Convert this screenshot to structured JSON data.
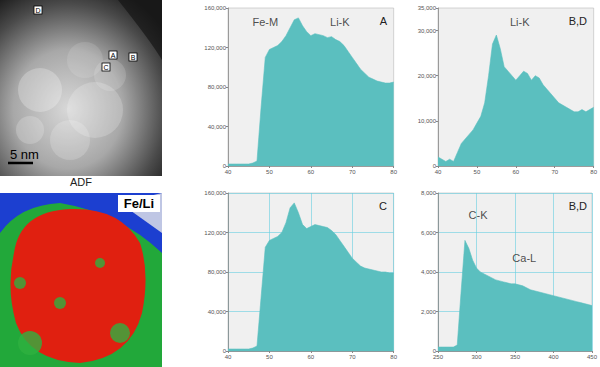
{
  "images": [
    {
      "caption": "ADF",
      "scale_bar": "5 nm",
      "markers": [
        "D",
        "A",
        "B",
        "C"
      ]
    },
    {
      "label": "Fe/Li"
    }
  ],
  "chart_data": [
    {
      "type": "area",
      "title": "A",
      "color": "#5bbfbf",
      "grid": false,
      "x": [
        40,
        41,
        42,
        43,
        44,
        45,
        46,
        47,
        48,
        49,
        50,
        51,
        52,
        53,
        54,
        55,
        56,
        57,
        58,
        59,
        60,
        61,
        62,
        63,
        64,
        65,
        66,
        67,
        68,
        69,
        70,
        71,
        72,
        73,
        74,
        75,
        76,
        77,
        78,
        79,
        80
      ],
      "values": [
        2000,
        2000,
        2000,
        2000,
        2000,
        2000,
        3000,
        5000,
        60000,
        110000,
        118000,
        120000,
        122000,
        126000,
        132000,
        140000,
        148000,
        150000,
        142000,
        136000,
        132000,
        134000,
        133000,
        132000,
        130000,
        131000,
        128000,
        126000,
        122000,
        116000,
        110000,
        104000,
        98000,
        94000,
        90000,
        88000,
        86000,
        85000,
        84000,
        84000,
        85000
      ],
      "xlim": [
        40,
        80
      ],
      "xticks": [
        40,
        50,
        60,
        70,
        80
      ],
      "ylim": [
        0,
        160000
      ],
      "yticks": [
        0,
        40000,
        80000,
        120000,
        160000
      ],
      "annotations": [
        {
          "text": "Fe-M",
          "x": 49,
          "y": 146000
        },
        {
          "text": "Li-K",
          "x": 67,
          "y": 146000
        }
      ]
    },
    {
      "type": "area",
      "title": "B,D",
      "color": "#5bbfbf",
      "grid": false,
      "x": [
        40,
        41,
        42,
        43,
        44,
        45,
        46,
        47,
        48,
        49,
        50,
        51,
        52,
        53,
        54,
        55,
        56,
        57,
        58,
        59,
        60,
        61,
        62,
        63,
        64,
        65,
        66,
        67,
        68,
        69,
        70,
        71,
        72,
        73,
        74,
        75,
        76,
        77,
        78,
        79,
        80
      ],
      "values": [
        2000,
        1500,
        1000,
        1500,
        1000,
        3000,
        5000,
        6000,
        7000,
        8000,
        9500,
        11000,
        14000,
        20000,
        27000,
        29000,
        26000,
        22000,
        21000,
        20000,
        19000,
        20000,
        21000,
        20500,
        19000,
        20000,
        19500,
        18000,
        17000,
        16000,
        15000,
        14000,
        13500,
        13000,
        12500,
        12000,
        12000,
        12500,
        12000,
        12500,
        13000
      ],
      "xlim": [
        40,
        80
      ],
      "xticks": [
        40,
        50,
        60,
        70,
        80
      ],
      "ylim": [
        0,
        35000
      ],
      "yticks": [
        0,
        10000,
        20000,
        30000
      ],
      "annotations": [
        {
          "text": "Li-K",
          "x": 61,
          "y": 32000
        }
      ]
    },
    {
      "type": "area",
      "title": "C",
      "color": "#5bbfbf",
      "grid": true,
      "x": [
        40,
        41,
        42,
        43,
        44,
        45,
        46,
        47,
        48,
        49,
        50,
        51,
        52,
        53,
        54,
        55,
        56,
        57,
        58,
        59,
        60,
        61,
        62,
        63,
        64,
        65,
        66,
        67,
        68,
        69,
        70,
        71,
        72,
        73,
        74,
        75,
        76,
        77,
        78,
        79,
        80
      ],
      "values": [
        2000,
        2000,
        2000,
        2000,
        2000,
        2000,
        3000,
        5000,
        55000,
        105000,
        112000,
        114000,
        116000,
        120000,
        130000,
        145000,
        150000,
        140000,
        128000,
        124000,
        126000,
        128000,
        127000,
        126000,
        125000,
        122000,
        118000,
        112000,
        106000,
        100000,
        94000,
        90000,
        86000,
        84000,
        83000,
        82000,
        81000,
        80000,
        80000,
        79000,
        79000
      ],
      "xlim": [
        40,
        80
      ],
      "xticks": [
        40,
        50,
        60,
        70,
        80
      ],
      "ylim": [
        0,
        160000
      ],
      "yticks": [
        0,
        40000,
        80000,
        120000,
        160000
      ],
      "annotations": []
    },
    {
      "type": "area",
      "title": "B,D",
      "color": "#5bbfbf",
      "grid": true,
      "x": [
        250,
        255,
        260,
        265,
        270,
        275,
        280,
        285,
        290,
        295,
        300,
        305,
        310,
        315,
        320,
        325,
        330,
        335,
        340,
        345,
        350,
        355,
        360,
        365,
        370,
        375,
        380,
        385,
        390,
        395,
        400,
        405,
        410,
        415,
        420,
        425,
        430,
        435,
        440,
        445,
        450
      ],
      "values": [
        200,
        200,
        200,
        200,
        200,
        300,
        3000,
        5600,
        5200,
        4600,
        4200,
        4000,
        3900,
        3800,
        3700,
        3600,
        3550,
        3500,
        3450,
        3400,
        3400,
        3350,
        3300,
        3200,
        3100,
        3050,
        3000,
        2950,
        2900,
        2850,
        2800,
        2750,
        2700,
        2650,
        2600,
        2550,
        2500,
        2450,
        2400,
        2350,
        2300
      ],
      "xlim": [
        250,
        450
      ],
      "xticks": [
        250,
        300,
        350,
        400,
        450
      ],
      "ylim": [
        0,
        8000
      ],
      "yticks": [
        0,
        2000,
        4000,
        6000,
        8000
      ],
      "annotations": [
        {
          "text": "C-K",
          "x": 302,
          "y": 6900
        },
        {
          "text": "Ca-L",
          "x": 362,
          "y": 4700
        }
      ]
    }
  ]
}
